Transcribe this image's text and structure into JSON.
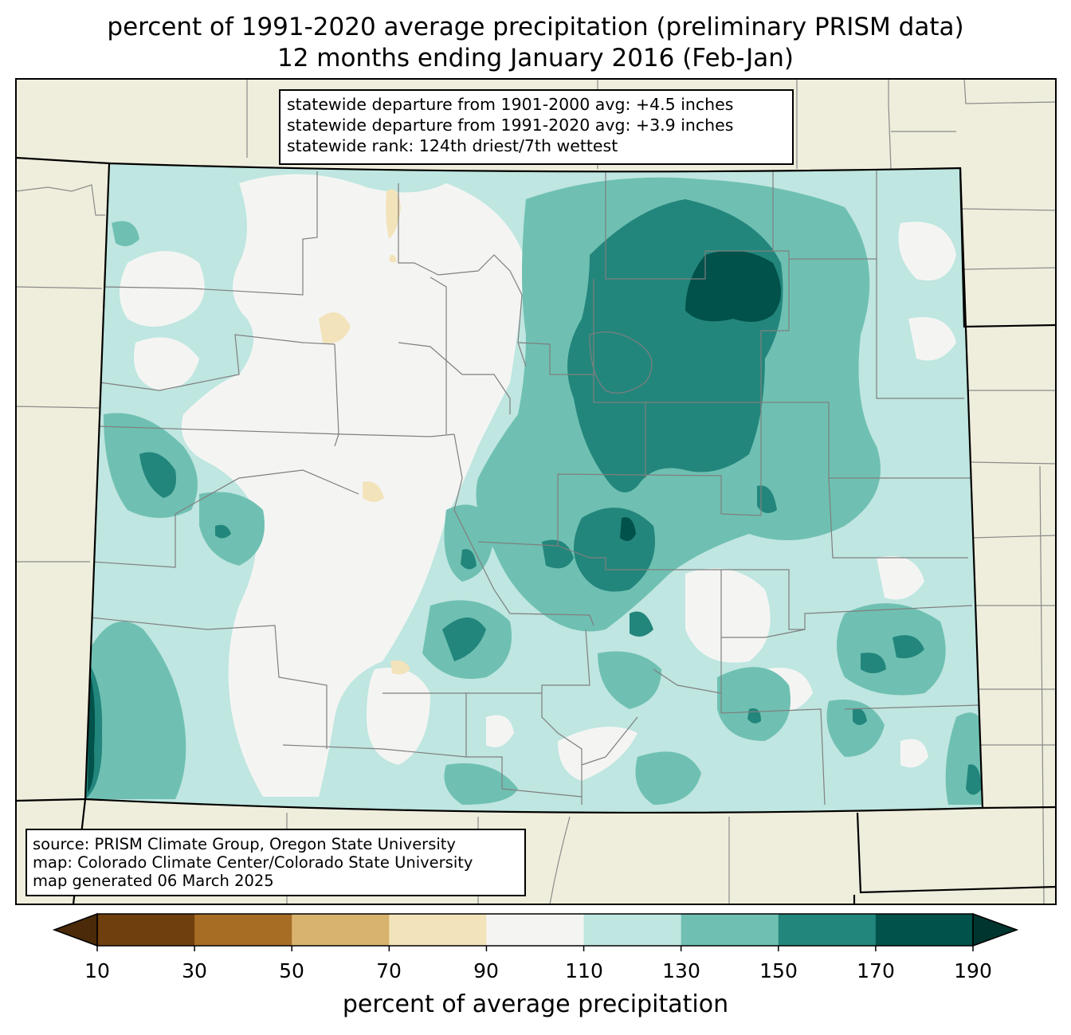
{
  "title": {
    "line1": "percent of 1991-2020 average precipitation (preliminary PRISM data)",
    "line2": "12 months ending January 2016 (Feb-Jan)"
  },
  "stats_box": {
    "line1": "statewide departure from 1901-2000 avg: +4.5 inches",
    "line2": "statewide departure from 1991-2020 avg: +3.9 inches",
    "line3": "statewide rank: 124th driest/7th wettest"
  },
  "source_box": {
    "line1": "source: PRISM Climate Group, Oregon State University",
    "line2": "map: Colorado Climate Center/Colorado State University",
    "line3": "map generated 06 March 2025"
  },
  "colorbar": {
    "label": "percent of average precipitation",
    "ticks": [
      "10",
      "30",
      "50",
      "70",
      "90",
      "110",
      "130",
      "150",
      "170",
      "190"
    ],
    "colors": [
      "#6f3f0d",
      "#a86d25",
      "#d8b36e",
      "#f3e3bb",
      "#f4f5f3",
      "#bfe6e0",
      "#6fc0b2",
      "#23867c",
      "#00524a"
    ],
    "under_color": "#4a2a08",
    "over_color": "#00352f"
  },
  "map_colors": {
    "background": "#efeedc",
    "base": "#bfe6e0"
  }
}
